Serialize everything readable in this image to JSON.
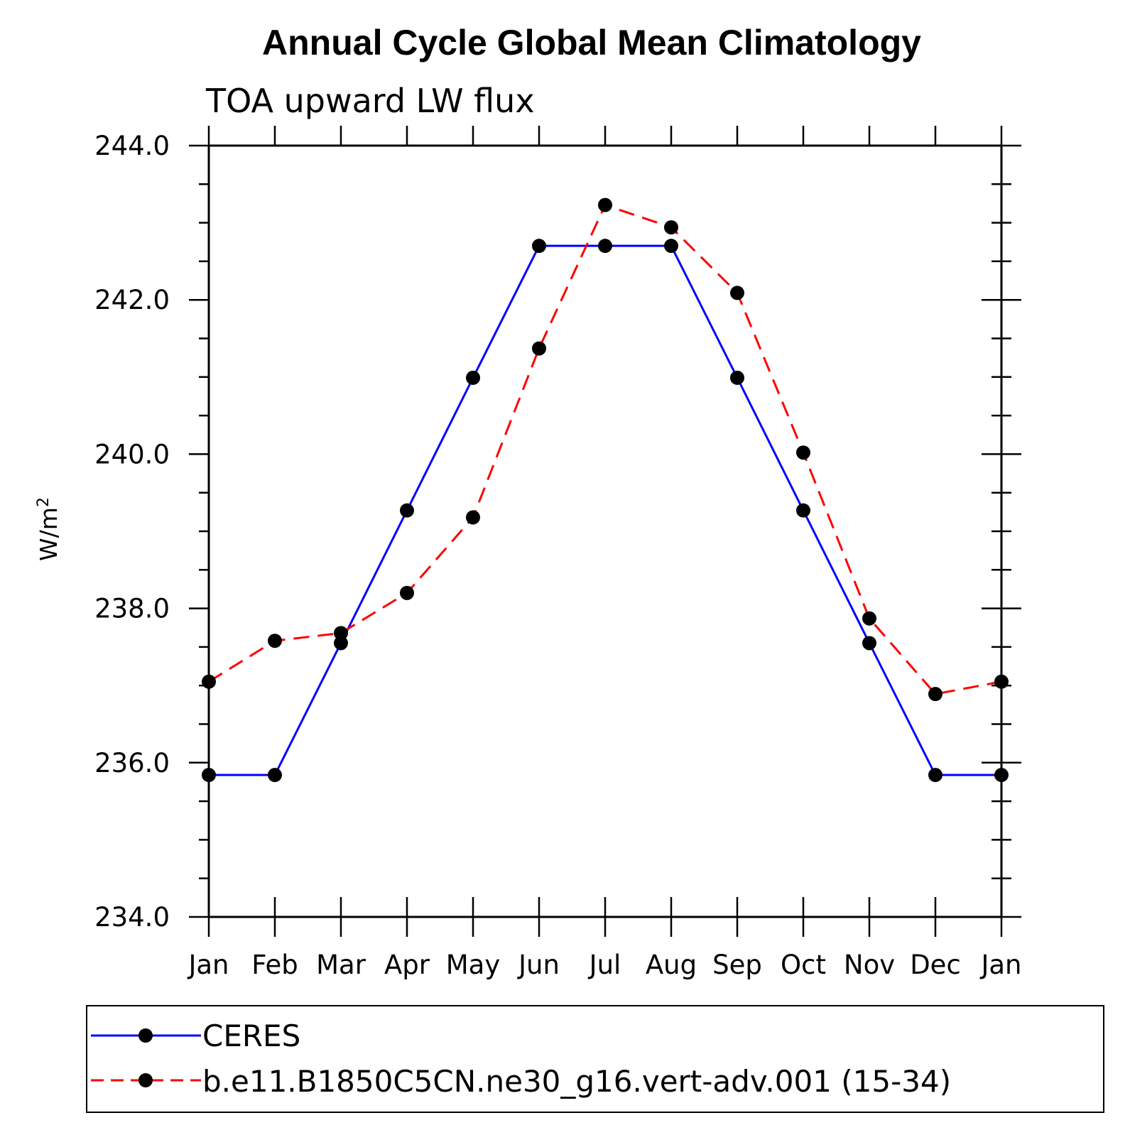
{
  "chart_data": {
    "type": "line",
    "title": "Annual Cycle Global Mean Climatology",
    "subtitle": "TOA upward LW flux",
    "ylabel": "W/m",
    "ylabel_superscript": "2",
    "xlabel": "",
    "ylim": [
      234.0,
      244.0
    ],
    "yticks": [
      "234.0",
      "236.0",
      "238.0",
      "240.0",
      "242.0",
      "244.0"
    ],
    "categories": [
      "Jan",
      "Feb",
      "Mar",
      "Apr",
      "May",
      "Jun",
      "Jul",
      "Aug",
      "Sep",
      "Oct",
      "Nov",
      "Dec",
      "Jan"
    ],
    "grid": false,
    "legend_position": "bottom",
    "series": [
      {
        "name": "CERES",
        "color": "#0000ff",
        "dashed": false,
        "values": [
          235.84,
          235.84,
          237.55,
          239.27,
          240.99,
          242.7,
          242.7,
          242.7,
          240.99,
          239.27,
          237.55,
          235.84,
          235.84
        ]
      },
      {
        "name": "b.e11.B1850C5CN.ne30_g16.vert-adv.001 (15-34)",
        "color": "#ff0000",
        "dashed": true,
        "values": [
          237.05,
          237.58,
          237.68,
          238.2,
          239.18,
          241.37,
          243.23,
          242.94,
          242.09,
          240.02,
          237.87,
          236.89,
          237.05
        ]
      }
    ]
  }
}
